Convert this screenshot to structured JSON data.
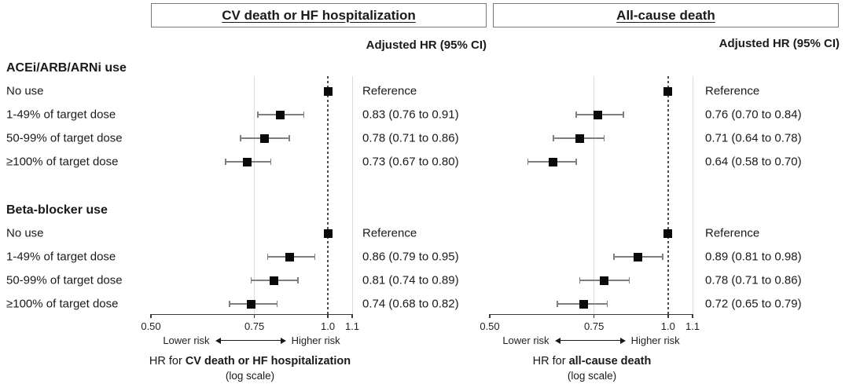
{
  "colors": {
    "marker": "#0a0a0a",
    "whisker": "#7f7f7f",
    "text": "#1a1a1a",
    "box_border": "#7a7a7a",
    "gridline": "#dcdcdc",
    "reference_line": "#4f4f4f",
    "background": "#ffffff"
  },
  "chart_data": [
    {
      "type": "scatter",
      "variant": "forest-plot",
      "title": "CV death or HF hospitalization",
      "hr_header": "Adjusted HR (95% CI)",
      "x_scale": "log",
      "xlim": [
        0.5,
        1.1
      ],
      "x_ticks": [
        0.5,
        0.75,
        1.0,
        1.1
      ],
      "x_tick_labels": [
        "0.50",
        "0.75",
        "1.0",
        "1.1"
      ],
      "reference_line": 1.0,
      "axis_annotation": {
        "left": "Lower risk",
        "right": "Higher risk"
      },
      "caption": {
        "prefix": "HR for ",
        "bold": "CV death or HF hospitalization",
        "line2": "(log scale)"
      },
      "groups": [
        {
          "label": "ACEi/ARB/ARNi use",
          "rows": [
            {
              "label": "No use",
              "hr": 1.0,
              "lo": null,
              "hi": null,
              "hr_text": "Reference"
            },
            {
              "label": "1-49% of target dose",
              "hr": 0.83,
              "lo": 0.76,
              "hi": 0.91,
              "hr_text": "0.83 (0.76 to 0.91)"
            },
            {
              "label": "50-99% of target dose",
              "hr": 0.78,
              "lo": 0.71,
              "hi": 0.86,
              "hr_text": "0.78 (0.71 to 0.86)"
            },
            {
              "label": "≥100% of target dose",
              "hr": 0.73,
              "lo": 0.67,
              "hi": 0.8,
              "hr_text": "0.73 (0.67 to 0.80)"
            }
          ]
        },
        {
          "label": "Beta-blocker use",
          "rows": [
            {
              "label": "No use",
              "hr": 1.0,
              "lo": null,
              "hi": null,
              "hr_text": "Reference"
            },
            {
              "label": "1-49% of target dose",
              "hr": 0.86,
              "lo": 0.79,
              "hi": 0.95,
              "hr_text": "0.86 (0.79 to 0.95)"
            },
            {
              "label": "50-99% of target dose",
              "hr": 0.81,
              "lo": 0.74,
              "hi": 0.89,
              "hr_text": "0.81 (0.74 to 0.89)"
            },
            {
              "label": "≥100% of target dose",
              "hr": 0.74,
              "lo": 0.68,
              "hi": 0.82,
              "hr_text": "0.74 (0.68 to 0.82)"
            }
          ]
        }
      ]
    },
    {
      "type": "scatter",
      "variant": "forest-plot",
      "title": "All-cause death",
      "hr_header": "Adjusted HR (95% CI)",
      "x_scale": "log",
      "xlim": [
        0.5,
        1.1
      ],
      "x_ticks": [
        0.5,
        0.75,
        1.0,
        1.1
      ],
      "x_tick_labels": [
        "0.50",
        "0.75",
        "1.0",
        "1.1"
      ],
      "reference_line": 1.0,
      "axis_annotation": {
        "left": "Lower risk",
        "right": "Higher risk"
      },
      "caption": {
        "prefix": "HR for ",
        "bold": "all-cause death",
        "line2": "(log scale)"
      },
      "groups": [
        {
          "label": "ACEi/ARB/ARNi use",
          "rows": [
            {
              "label": "No use",
              "hr": 1.0,
              "lo": null,
              "hi": null,
              "hr_text": "Reference"
            },
            {
              "label": "1-49% of target dose",
              "hr": 0.76,
              "lo": 0.7,
              "hi": 0.84,
              "hr_text": "0.76 (0.70 to 0.84)"
            },
            {
              "label": "50-99% of target dose",
              "hr": 0.71,
              "lo": 0.64,
              "hi": 0.78,
              "hr_text": "0.71 (0.64 to 0.78)"
            },
            {
              "label": "≥100% of target dose",
              "hr": 0.64,
              "lo": 0.58,
              "hi": 0.7,
              "hr_text": "0.64 (0.58 to 0.70)"
            }
          ]
        },
        {
          "label": "Beta-blocker use",
          "rows": [
            {
              "label": "No use",
              "hr": 1.0,
              "lo": null,
              "hi": null,
              "hr_text": "Reference"
            },
            {
              "label": "1-49% of target dose",
              "hr": 0.89,
              "lo": 0.81,
              "hi": 0.98,
              "hr_text": "0.89 (0.81 to 0.98)"
            },
            {
              "label": "50-99% of target dose",
              "hr": 0.78,
              "lo": 0.71,
              "hi": 0.86,
              "hr_text": "0.78 (0.71 to 0.86)"
            },
            {
              "label": "≥100% of target dose",
              "hr": 0.72,
              "lo": 0.65,
              "hi": 0.79,
              "hr_text": "0.72 (0.65 to 0.79)"
            }
          ]
        }
      ]
    }
  ]
}
